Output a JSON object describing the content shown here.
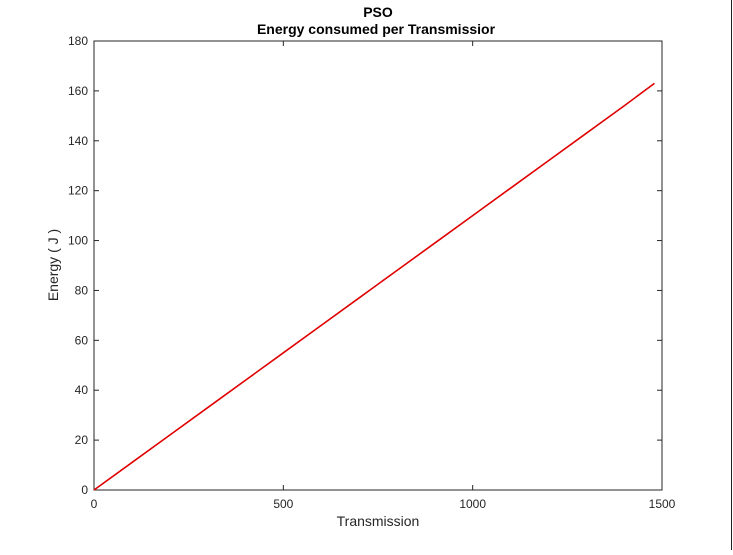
{
  "chart_data": {
    "type": "line",
    "title": "PSO",
    "subtitle": "Energy consumed per Transmissior",
    "xlabel": "Transmission",
    "ylabel": "Energy ( J )",
    "xlim": [
      0,
      1500
    ],
    "ylim": [
      0,
      180
    ],
    "xticks": [
      0,
      500,
      1000,
      1500
    ],
    "xtick_labels": [
      "0",
      "500",
      "1000",
      "1500"
    ],
    "yticks": [
      0,
      20,
      40,
      60,
      80,
      100,
      120,
      140,
      160,
      180
    ],
    "ytick_labels": [
      "0",
      "20",
      "40",
      "60",
      "80",
      "100",
      "120",
      "140",
      "160",
      "180"
    ],
    "grid": false,
    "series": [
      {
        "color": "#e00000",
        "x": [
          0,
          100,
          200,
          300,
          400,
          500,
          600,
          700,
          800,
          900,
          1000,
          1100,
          1200,
          1300,
          1400,
          1480
        ],
        "y": [
          0,
          11,
          22,
          33,
          44,
          55,
          66,
          77,
          88,
          99,
          110,
          121,
          132,
          143,
          154,
          163
        ]
      }
    ]
  },
  "colors": {
    "axes": "#262626",
    "line": "#e00000",
    "background": "#ffffff"
  }
}
